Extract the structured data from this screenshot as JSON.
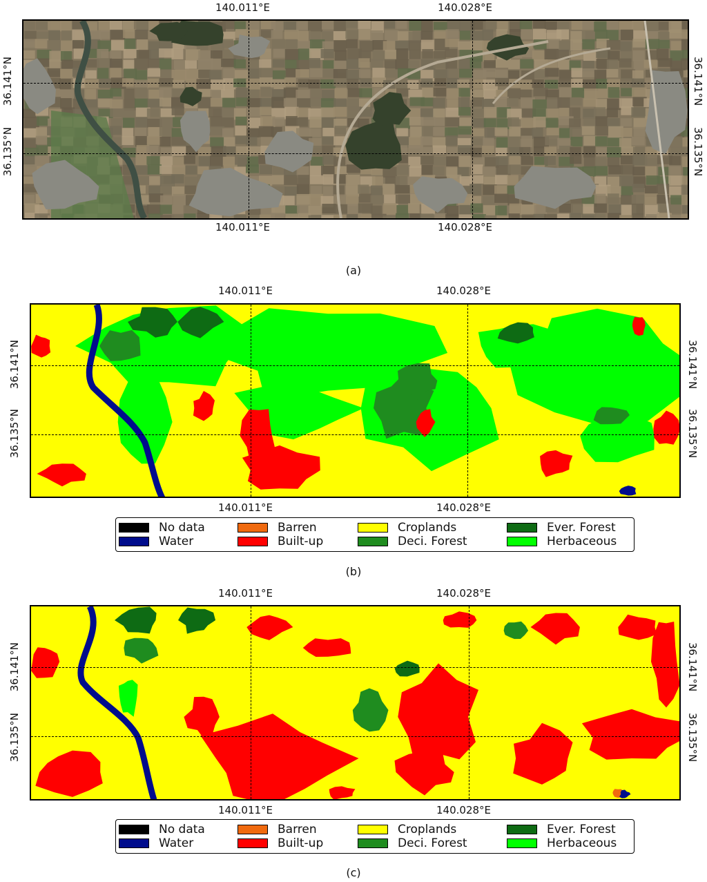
{
  "classes": [
    {
      "id": "nodata",
      "label": "No data",
      "color": "#000000"
    },
    {
      "id": "water",
      "label": "Water",
      "color": "#000c8c"
    },
    {
      "id": "barren",
      "label": "Barren",
      "color": "#f06a0f"
    },
    {
      "id": "builtup",
      "label": "Built-up",
      "color": "#ff0000"
    },
    {
      "id": "croplands",
      "label": "Croplands",
      "color": "#ffff00"
    },
    {
      "id": "deci",
      "label": "Deci. Forest",
      "color": "#1f8c1f"
    },
    {
      "id": "ever",
      "label": "Ever. Forest",
      "color": "#0e6b14"
    },
    {
      "id": "herb",
      "label": "Herbaceous",
      "color": "#00ff00"
    }
  ],
  "ticks": {
    "lon": [
      "140.011°E",
      "140.028°E"
    ],
    "lat": [
      "36.141°N",
      "36.135°N"
    ]
  },
  "panels": {
    "a": {
      "caption": "(a)",
      "kind": "satellite image"
    },
    "b": {
      "caption": "(b)",
      "kind": "land-cover map"
    },
    "c": {
      "caption": "(c)",
      "kind": "land-cover map"
    }
  }
}
